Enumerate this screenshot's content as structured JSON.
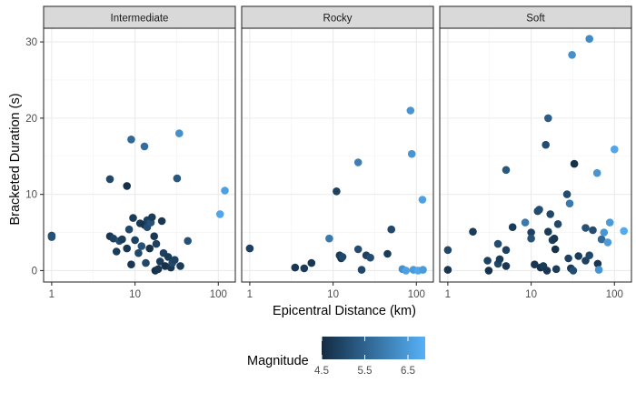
{
  "chart_data": {
    "type": "scatter",
    "xlabel": "Epicentral Distance (km)",
    "ylabel": "Bracketed Duration (s)",
    "x_scale": "log10",
    "xlim": [
      0.8,
      160
    ],
    "ylim": [
      -1.5,
      31.8
    ],
    "x_ticks": [
      1,
      10,
      100
    ],
    "x_tick_labels": [
      "1",
      "10",
      "100"
    ],
    "y_ticks": [
      0,
      10,
      20,
      30
    ],
    "y_tick_labels": [
      "0",
      "10",
      "20",
      "30"
    ],
    "grid": true,
    "legend": {
      "title": "Magnitude",
      "position": "bottom",
      "ticks": [
        4.5,
        5.5,
        6.5
      ],
      "tick_labels": [
        "4.5",
        "5.5",
        "6.5"
      ],
      "range": [
        4.5,
        6.9
      ],
      "low_color": "#132B43",
      "high_color": "#56B1F7"
    },
    "panels": [
      {
        "name": "Intermediate",
        "points": [
          {
            "x": 1,
            "y": 4.6,
            "m": 5.1
          },
          {
            "x": 1,
            "y": 4.4,
            "m": 5.2
          },
          {
            "x": 5,
            "y": 4.5,
            "m": 4.7
          },
          {
            "x": 5,
            "y": 12,
            "m": 5.0
          },
          {
            "x": 5.5,
            "y": 4.2,
            "m": 4.9
          },
          {
            "x": 6,
            "y": 2.5,
            "m": 4.8
          },
          {
            "x": 6.5,
            "y": 3.9,
            "m": 5.1
          },
          {
            "x": 7,
            "y": 4.1,
            "m": 4.8
          },
          {
            "x": 8,
            "y": 11.1,
            "m": 4.6
          },
          {
            "x": 8,
            "y": 2.9,
            "m": 4.7
          },
          {
            "x": 8.5,
            "y": 5.4,
            "m": 5.0
          },
          {
            "x": 9,
            "y": 0.8,
            "m": 4.7
          },
          {
            "x": 9,
            "y": 17.2,
            "m": 5.6
          },
          {
            "x": 9.5,
            "y": 6.9,
            "m": 4.8
          },
          {
            "x": 10,
            "y": 4.0,
            "m": 4.9
          },
          {
            "x": 11,
            "y": 2.3,
            "m": 5.0
          },
          {
            "x": 11.5,
            "y": 6.2,
            "m": 4.7
          },
          {
            "x": 12,
            "y": 3.2,
            "m": 5.2
          },
          {
            "x": 13,
            "y": 16.3,
            "m": 5.7
          },
          {
            "x": 13,
            "y": 6.0,
            "m": 4.6
          },
          {
            "x": 13.5,
            "y": 1.0,
            "m": 5.0
          },
          {
            "x": 14,
            "y": 5.7,
            "m": 5.1
          },
          {
            "x": 14,
            "y": 6.6,
            "m": 4.9
          },
          {
            "x": 15,
            "y": 2.9,
            "m": 4.6
          },
          {
            "x": 15.5,
            "y": 6.3,
            "m": 5.2
          },
          {
            "x": 16,
            "y": 7.0,
            "m": 4.8
          },
          {
            "x": 17,
            "y": 4.5,
            "m": 4.7
          },
          {
            "x": 17.5,
            "y": 0.0,
            "m": 4.6
          },
          {
            "x": 18,
            "y": 3.5,
            "m": 4.9
          },
          {
            "x": 19,
            "y": 0.2,
            "m": 4.7
          },
          {
            "x": 20,
            "y": 1.2,
            "m": 4.8
          },
          {
            "x": 21,
            "y": 6.5,
            "m": 4.7
          },
          {
            "x": 22,
            "y": 2.3,
            "m": 4.9
          },
          {
            "x": 23,
            "y": 0.6,
            "m": 4.6
          },
          {
            "x": 25,
            "y": 1.8,
            "m": 4.8
          },
          {
            "x": 27,
            "y": 0.4,
            "m": 4.7
          },
          {
            "x": 28,
            "y": 1.0,
            "m": 5.0
          },
          {
            "x": 30,
            "y": 1.4,
            "m": 4.9
          },
          {
            "x": 32,
            "y": 12.1,
            "m": 5.3
          },
          {
            "x": 34,
            "y": 18.0,
            "m": 6.3
          },
          {
            "x": 35,
            "y": 0.6,
            "m": 4.8
          },
          {
            "x": 43,
            "y": 3.9,
            "m": 5.2
          },
          {
            "x": 105,
            "y": 7.4,
            "m": 6.7
          },
          {
            "x": 120,
            "y": 10.5,
            "m": 6.6
          }
        ]
      },
      {
        "name": "Rocky",
        "points": [
          {
            "x": 1,
            "y": 2.9,
            "m": 4.9
          },
          {
            "x": 3.5,
            "y": 0.4,
            "m": 4.7
          },
          {
            "x": 4.5,
            "y": 0.3,
            "m": 4.8
          },
          {
            "x": 5.5,
            "y": 1.0,
            "m": 4.7
          },
          {
            "x": 9,
            "y": 4.2,
            "m": 5.9
          },
          {
            "x": 11,
            "y": 10.4,
            "m": 4.9
          },
          {
            "x": 12,
            "y": 2.0,
            "m": 4.8
          },
          {
            "x": 12.5,
            "y": 1.6,
            "m": 4.7
          },
          {
            "x": 13,
            "y": 1.8,
            "m": 5.0
          },
          {
            "x": 20,
            "y": 14.2,
            "m": 6.0
          },
          {
            "x": 20,
            "y": 2.8,
            "m": 5.1
          },
          {
            "x": 22,
            "y": 0.1,
            "m": 5.0
          },
          {
            "x": 25,
            "y": 2.0,
            "m": 4.9
          },
          {
            "x": 28,
            "y": 1.7,
            "m": 5.1
          },
          {
            "x": 45,
            "y": 2.2,
            "m": 4.8
          },
          {
            "x": 50,
            "y": 5.4,
            "m": 5.0
          },
          {
            "x": 68,
            "y": 0.2,
            "m": 6.3
          },
          {
            "x": 75,
            "y": 0.0,
            "m": 6.6
          },
          {
            "x": 85,
            "y": 21.0,
            "m": 6.4
          },
          {
            "x": 88,
            "y": 15.3,
            "m": 6.4
          },
          {
            "x": 92,
            "y": 0.1,
            "m": 6.5
          },
          {
            "x": 105,
            "y": 0.0,
            "m": 6.7
          },
          {
            "x": 118,
            "y": 9.3,
            "m": 6.6
          },
          {
            "x": 120,
            "y": 0.1,
            "m": 6.5
          }
        ]
      },
      {
        "name": "Soft",
        "points": [
          {
            "x": 1,
            "y": 2.7,
            "m": 5.0
          },
          {
            "x": 1,
            "y": 0.1,
            "m": 4.7
          },
          {
            "x": 2,
            "y": 5.1,
            "m": 4.8
          },
          {
            "x": 3,
            "y": 1.3,
            "m": 4.9
          },
          {
            "x": 3.1,
            "y": 0.0,
            "m": 4.6
          },
          {
            "x": 4,
            "y": 3.5,
            "m": 5.1
          },
          {
            "x": 4,
            "y": 0.9,
            "m": 5.0
          },
          {
            "x": 4.2,
            "y": 1.5,
            "m": 4.8
          },
          {
            "x": 5,
            "y": 0.6,
            "m": 4.7
          },
          {
            "x": 5,
            "y": 2.7,
            "m": 4.9
          },
          {
            "x": 5,
            "y": 13.2,
            "m": 5.3
          },
          {
            "x": 6,
            "y": 5.7,
            "m": 4.8
          },
          {
            "x": 8.5,
            "y": 6.3,
            "m": 5.9
          },
          {
            "x": 10,
            "y": 5.0,
            "m": 4.9
          },
          {
            "x": 10,
            "y": 4.2,
            "m": 5.2
          },
          {
            "x": 11,
            "y": 0.8,
            "m": 4.7
          },
          {
            "x": 12,
            "y": 7.8,
            "m": 5.0
          },
          {
            "x": 12.5,
            "y": 8.0,
            "m": 5.1
          },
          {
            "x": 13,
            "y": 0.4,
            "m": 4.6
          },
          {
            "x": 14,
            "y": 0.6,
            "m": 4.8
          },
          {
            "x": 15,
            "y": 16.5,
            "m": 5.1
          },
          {
            "x": 15.5,
            "y": 0.0,
            "m": 4.7
          },
          {
            "x": 16,
            "y": 20.0,
            "m": 5.4
          },
          {
            "x": 16,
            "y": 5.1,
            "m": 4.8
          },
          {
            "x": 17,
            "y": 7.4,
            "m": 5.0
          },
          {
            "x": 18,
            "y": 4.0,
            "m": 4.9
          },
          {
            "x": 19,
            "y": 4.2,
            "m": 4.7
          },
          {
            "x": 19.5,
            "y": 2.8,
            "m": 4.6
          },
          {
            "x": 20,
            "y": 0.2,
            "m": 4.8
          },
          {
            "x": 21,
            "y": 6.1,
            "m": 5.0
          },
          {
            "x": 27,
            "y": 10.0,
            "m": 5.1
          },
          {
            "x": 28,
            "y": 1.6,
            "m": 4.9
          },
          {
            "x": 29,
            "y": 8.8,
            "m": 5.9
          },
          {
            "x": 30,
            "y": 0.3,
            "m": 4.8
          },
          {
            "x": 31,
            "y": 28.3,
            "m": 6.3
          },
          {
            "x": 32,
            "y": 0.0,
            "m": 5.1
          },
          {
            "x": 33,
            "y": 14.0,
            "m": 4.6
          },
          {
            "x": 37,
            "y": 1.9,
            "m": 4.8
          },
          {
            "x": 45,
            "y": 5.6,
            "m": 5.2
          },
          {
            "x": 45,
            "y": 1.3,
            "m": 4.9
          },
          {
            "x": 50,
            "y": 30.4,
            "m": 6.2
          },
          {
            "x": 50,
            "y": 2.0,
            "m": 5.0
          },
          {
            "x": 55,
            "y": 5.3,
            "m": 5.1
          },
          {
            "x": 62,
            "y": 12.8,
            "m": 6.4
          },
          {
            "x": 63,
            "y": 0.9,
            "m": 4.7
          },
          {
            "x": 65,
            "y": 0.1,
            "m": 6.4
          },
          {
            "x": 70,
            "y": 4.1,
            "m": 5.6
          },
          {
            "x": 75,
            "y": 5.0,
            "m": 6.4
          },
          {
            "x": 83,
            "y": 3.7,
            "m": 6.5
          },
          {
            "x": 88,
            "y": 6.3,
            "m": 6.5
          },
          {
            "x": 100,
            "y": 15.9,
            "m": 6.7
          },
          {
            "x": 130,
            "y": 5.2,
            "m": 6.8
          }
        ]
      }
    ]
  }
}
